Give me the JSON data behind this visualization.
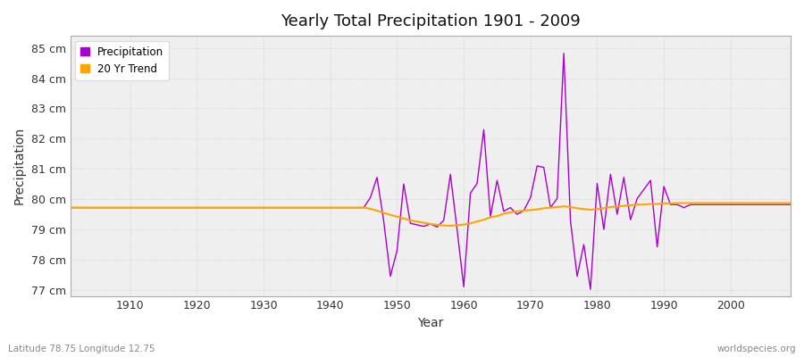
{
  "title": "Yearly Total Precipitation 1901 - 2009",
  "xlabel": "Year",
  "ylabel": "Precipitation",
  "subtitle_left": "Latitude 78.75 Longitude 12.75",
  "subtitle_right": "worldspecies.org",
  "precip_color": "#AA00CC",
  "trend_color": "#FFA500",
  "background_color": "#FFFFFF",
  "plot_bg_color": "#EFEFEF",
  "ylim": [
    76.8,
    85.4
  ],
  "yticks": [
    77,
    78,
    79,
    80,
    81,
    82,
    83,
    84,
    85
  ],
  "xlim": [
    1901,
    2009
  ],
  "xticks": [
    1910,
    1920,
    1930,
    1940,
    1950,
    1960,
    1970,
    1980,
    1990,
    2000
  ],
  "years": [
    1901,
    1902,
    1903,
    1904,
    1905,
    1906,
    1907,
    1908,
    1909,
    1910,
    1911,
    1912,
    1913,
    1914,
    1915,
    1916,
    1917,
    1918,
    1919,
    1920,
    1921,
    1922,
    1923,
    1924,
    1925,
    1926,
    1927,
    1928,
    1929,
    1930,
    1931,
    1932,
    1933,
    1934,
    1935,
    1936,
    1937,
    1938,
    1939,
    1940,
    1941,
    1942,
    1943,
    1944,
    1945,
    1946,
    1947,
    1948,
    1949,
    1950,
    1951,
    1952,
    1953,
    1954,
    1955,
    1956,
    1957,
    1958,
    1959,
    1960,
    1961,
    1962,
    1963,
    1964,
    1965,
    1966,
    1967,
    1968,
    1969,
    1970,
    1971,
    1972,
    1973,
    1974,
    1975,
    1976,
    1977,
    1978,
    1979,
    1980,
    1981,
    1982,
    1983,
    1984,
    1985,
    1986,
    1987,
    1988,
    1989,
    1990,
    1991,
    1992,
    1993,
    1994,
    1995,
    1996,
    1997,
    1998,
    1999,
    2000,
    2001,
    2002,
    2003,
    2004,
    2005,
    2006,
    2007,
    2008,
    2009
  ],
  "precipitation": [
    79.72,
    79.72,
    79.72,
    79.72,
    79.72,
    79.72,
    79.72,
    79.72,
    79.72,
    79.72,
    79.72,
    79.72,
    79.72,
    79.72,
    79.72,
    79.72,
    79.72,
    79.72,
    79.72,
    79.72,
    79.72,
    79.72,
    79.72,
    79.72,
    79.72,
    79.72,
    79.72,
    79.72,
    79.72,
    79.72,
    79.72,
    79.72,
    79.72,
    79.72,
    79.72,
    79.72,
    79.72,
    79.72,
    79.72,
    79.72,
    79.72,
    79.72,
    79.72,
    79.72,
    79.72,
    80.05,
    80.72,
    79.28,
    77.45,
    78.3,
    80.5,
    79.2,
    79.15,
    79.1,
    79.18,
    79.08,
    79.3,
    80.82,
    79.0,
    77.1,
    80.2,
    80.52,
    82.3,
    79.42,
    80.62,
    79.6,
    79.72,
    79.5,
    79.62,
    80.05,
    81.1,
    81.05,
    79.72,
    80.02,
    84.82,
    79.28,
    77.45,
    78.5,
    77.02,
    80.52,
    79.0,
    80.82,
    79.5,
    80.72,
    79.32,
    80.02,
    80.32,
    80.62,
    78.42,
    80.42,
    79.82,
    79.82,
    79.72,
    79.82,
    79.82,
    79.82,
    79.82,
    79.82,
    79.82,
    79.82,
    79.82,
    79.82,
    79.82,
    79.82,
    79.82,
    79.82,
    79.82,
    79.82,
    79.82
  ],
  "trend": [
    79.72,
    79.72,
    79.72,
    79.72,
    79.72,
    79.72,
    79.72,
    79.72,
    79.72,
    79.72,
    79.72,
    79.72,
    79.72,
    79.72,
    79.72,
    79.72,
    79.72,
    79.72,
    79.72,
    79.72,
    79.72,
    79.72,
    79.72,
    79.72,
    79.72,
    79.72,
    79.72,
    79.72,
    79.72,
    79.72,
    79.72,
    79.72,
    79.72,
    79.72,
    79.72,
    79.72,
    79.72,
    79.72,
    79.72,
    79.72,
    79.72,
    79.72,
    79.72,
    79.72,
    79.72,
    79.68,
    79.62,
    79.55,
    79.48,
    79.42,
    79.36,
    79.3,
    79.26,
    79.22,
    79.18,
    79.15,
    79.13,
    79.12,
    79.14,
    79.16,
    79.2,
    79.26,
    79.32,
    79.4,
    79.44,
    79.52,
    79.56,
    79.6,
    79.62,
    79.64,
    79.66,
    79.7,
    79.72,
    79.74,
    79.76,
    79.74,
    79.7,
    79.67,
    79.65,
    79.67,
    79.7,
    79.74,
    79.76,
    79.78,
    79.8,
    79.82,
    79.82,
    79.84,
    79.84,
    79.86,
    79.86,
    79.87,
    79.87,
    79.87,
    79.87,
    79.87,
    79.87,
    79.87,
    79.87,
    79.87,
    79.87,
    79.87,
    79.87,
    79.87,
    79.87,
    79.87,
    79.87,
    79.87,
    79.87
  ]
}
